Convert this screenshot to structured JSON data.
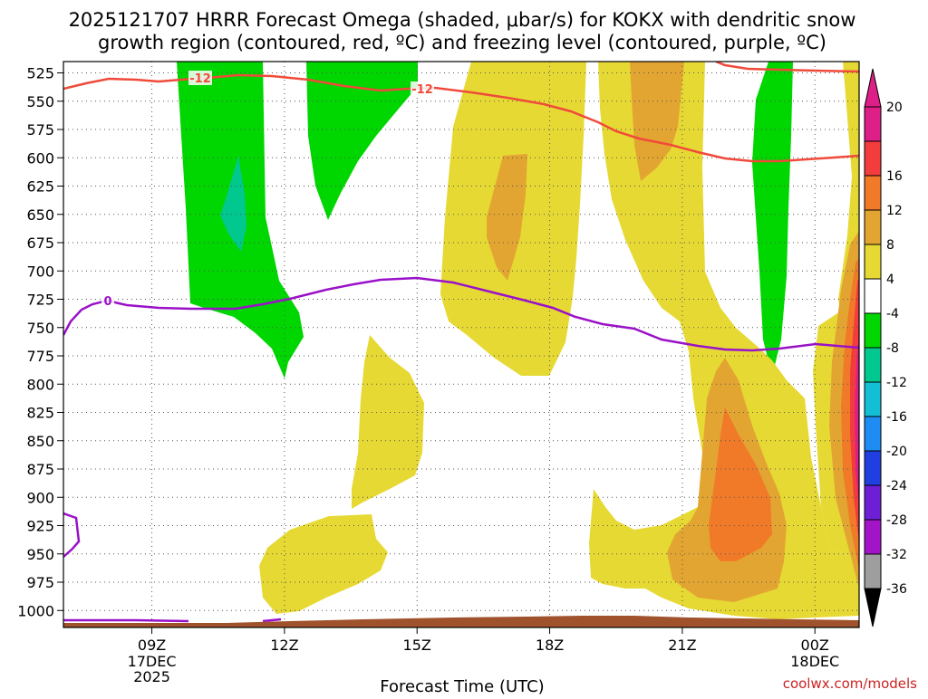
{
  "chart_data": {
    "type": "heatmap",
    "title_lines": [
      "2025121707 HRRR Forecast Omega (shaded, μbar/s) for KOKX with dendritic snow",
      "growth region (contoured, red, ºC) and freezing level (contoured, purple, ºC)"
    ],
    "xlabel": "Forecast Time (UTC)",
    "ylabel": "",
    "x_range_hours_from_09Z": [
      -2,
      16
    ],
    "y_range_hPa": [
      1015,
      515
    ],
    "y_ticks": [
      525,
      550,
      575,
      600,
      625,
      650,
      675,
      700,
      725,
      750,
      775,
      800,
      825,
      850,
      875,
      900,
      925,
      950,
      975,
      1000
    ],
    "x_ticks": [
      {
        "label": "09Z",
        "sub": [
          "17DEC",
          "2025"
        ],
        "hour": 0
      },
      {
        "label": "12Z",
        "sub": [],
        "hour": 3
      },
      {
        "label": "15Z",
        "sub": [],
        "hour": 6
      },
      {
        "label": "18Z",
        "sub": [],
        "hour": 9
      },
      {
        "label": "21Z",
        "sub": [],
        "hour": 12
      },
      {
        "label": "00Z",
        "sub": [
          "18DEC"
        ],
        "hour": 15
      }
    ],
    "grid": "dotted",
    "colorbar": {
      "labels": [
        "20",
        "16",
        "12",
        "8",
        "4",
        "-4",
        "-8",
        "-12",
        "-16",
        "-20",
        "-24",
        "-28",
        "-32",
        "-36"
      ],
      "colors": [
        "#dd1f87",
        "#f33c3c",
        "#f07a28",
        "#e3a531",
        "#e6d934",
        "#ffffff",
        "#00d600",
        "#00c88f",
        "#14bfd6",
        "#1e8cf2",
        "#1f3fe0",
        "#6e1fd6",
        "#a313c8",
        "#9e9e9e"
      ]
    },
    "contour_labels": {
      "dgz_top": "-12",
      "dgz_mid": "-12",
      "freezing": "0"
    },
    "credit": "coolwx.com/models"
  }
}
